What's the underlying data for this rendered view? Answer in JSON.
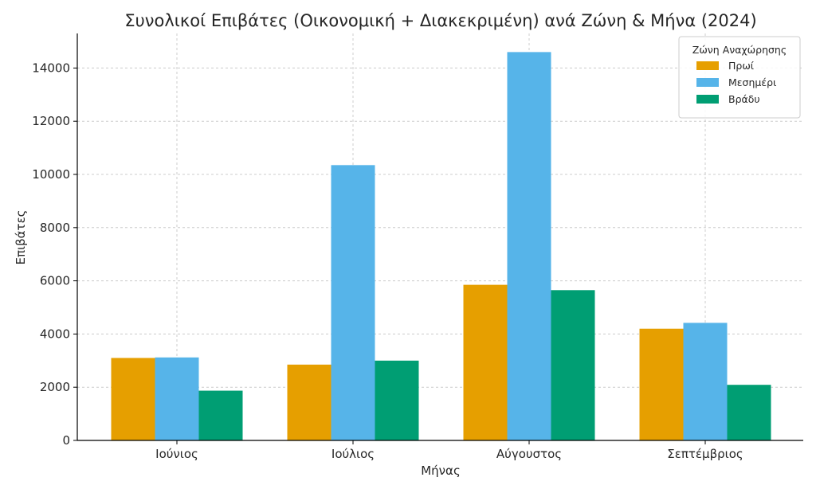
{
  "chart_data": {
    "type": "bar",
    "title": "Συνολικοί Επιβάτες (Οικονομική + Διακεκριμένη) ανά Ζώνη & Μήνα (2024)",
    "xlabel": "Μήνας",
    "ylabel": "Επιβάτες",
    "categories": [
      "Ιούνιος",
      "Ιούλιος",
      "Αύγουστος",
      "Σεπτέμβριος"
    ],
    "ylim": [
      0,
      15300
    ],
    "yticks": [
      0,
      2000,
      4000,
      6000,
      8000,
      10000,
      12000,
      14000
    ],
    "grid": true,
    "legend": {
      "title": "Ζώνη Αναχώρησης",
      "placement": "top-right"
    },
    "series": [
      {
        "name": "Πρωί",
        "color": "#E69F00",
        "values": [
          3100,
          2850,
          5850,
          4200
        ]
      },
      {
        "name": "Μεσημέρι",
        "color": "#56B4E9",
        "values": [
          3120,
          10350,
          14600,
          4420
        ]
      },
      {
        "name": "Βράδυ",
        "color": "#009E73",
        "values": [
          1870,
          3000,
          5650,
          2090
        ]
      }
    ]
  }
}
